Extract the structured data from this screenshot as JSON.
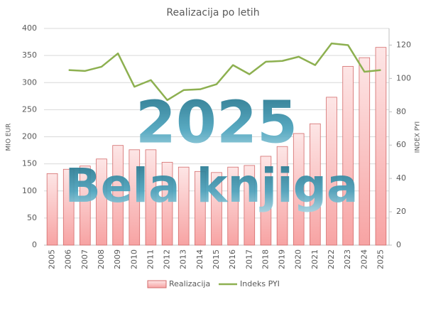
{
  "chart_data": {
    "type": "bar-line",
    "title": "Realizacija po letih",
    "ylabel": "MIO EUR",
    "y2label": "INDEX PYI",
    "annotations": [
      "2025",
      "Bela knjiga"
    ],
    "categories": [
      "2005",
      "2006",
      "2007",
      "2008",
      "2009",
      "2010",
      "2011",
      "2012",
      "2013",
      "2014",
      "2015",
      "2016",
      "2017",
      "2018",
      "2019",
      "2020",
      "2021",
      "2022",
      "2023",
      "2024",
      "2025"
    ],
    "series": [
      {
        "name": "Realizacija",
        "type": "bar",
        "color": "#f4a6a6",
        "values": [
          132,
          140,
          146,
          159,
          184,
          176,
          176,
          153,
          144,
          136,
          134,
          144,
          147,
          164,
          182,
          206,
          224,
          273,
          330,
          346,
          365
        ]
      },
      {
        "name": "Indeks PYI",
        "type": "line",
        "axis": "y2",
        "color": "#8db050",
        "values": [
          null,
          105,
          104.5,
          107,
          115,
          95,
          99,
          87,
          93,
          93.5,
          96.5,
          108,
          102.5,
          110,
          110.5,
          113,
          108,
          121,
          120,
          104,
          105
        ]
      }
    ],
    "ylim": [
      0,
      400
    ],
    "yticks": [
      0,
      50,
      100,
      150,
      200,
      250,
      300,
      350,
      400
    ],
    "y2lim": [
      0,
      130
    ],
    "y2ticks": [
      0,
      20,
      40,
      60,
      80,
      100,
      120
    ],
    "grid": true,
    "legend": "bottom"
  }
}
